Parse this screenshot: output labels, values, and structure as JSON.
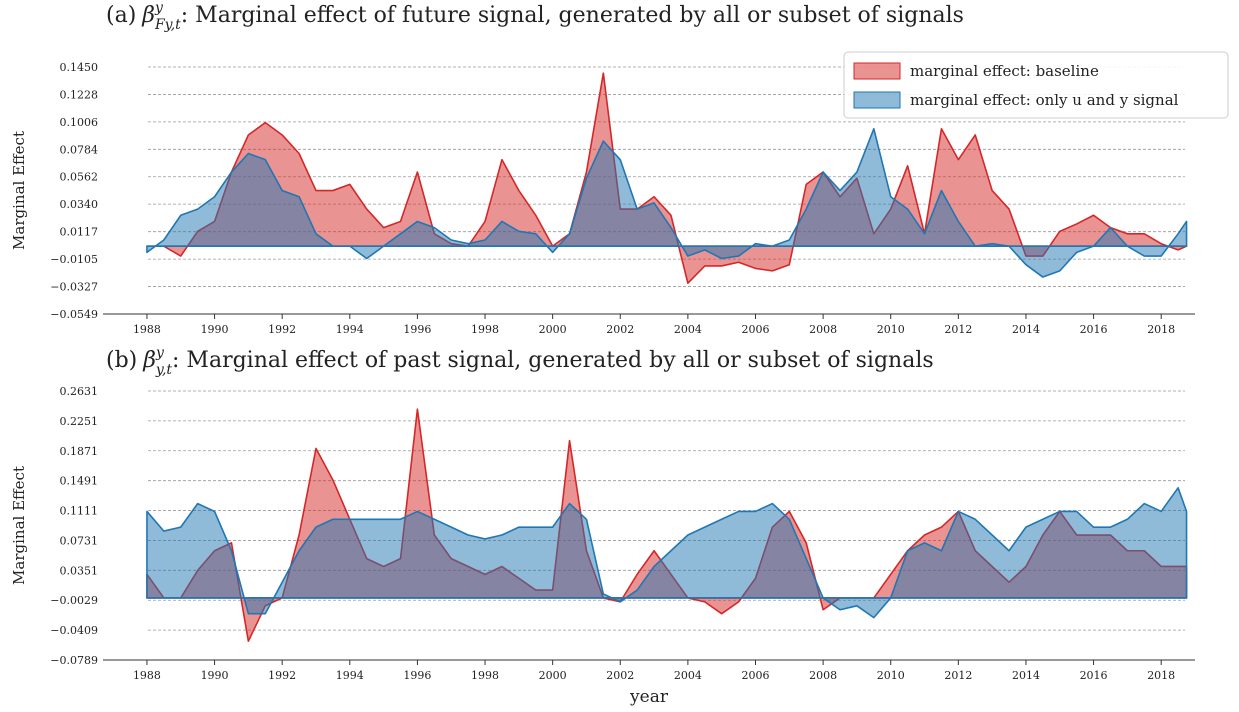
{
  "chart_data": [
    {
      "type": "area",
      "title_prefix": "(a)",
      "title_symbol": "β",
      "title_sup": "y",
      "title_sub": "Fy,t",
      "title_text": ": Marginal effect of future signal, generated by all or subset of signals",
      "ylabel": "Marginal Effect",
      "x": [
        1988,
        1988.5,
        1989,
        1989.5,
        1990,
        1990.5,
        1991,
        1991.5,
        1992,
        1992.5,
        1993,
        1993.5,
        1994,
        1994.5,
        1995,
        1995.5,
        1996,
        1996.5,
        1997,
        1997.5,
        1998,
        1998.5,
        1999,
        1999.5,
        2000,
        2000.5,
        2001,
        2001.5,
        2002,
        2002.5,
        2003,
        2003.5,
        2004,
        2004.5,
        2005,
        2005.5,
        2006,
        2006.5,
        2007,
        2007.5,
        2008,
        2008.5,
        2009,
        2009.5,
        2010,
        2010.5,
        2011,
        2011.5,
        2012,
        2012.5,
        2013,
        2013.5,
        2014,
        2014.5,
        2015,
        2015.5,
        2016,
        2016.5,
        2017,
        2017.5,
        2018,
        2018.5,
        2018.75
      ],
      "series": [
        {
          "name": "marginal effect: baseline",
          "color": "#d62728",
          "values": [
            0,
            0,
            -0.008,
            0.012,
            0.02,
            0.06,
            0.09,
            0.1,
            0.09,
            0.075,
            0.045,
            0.045,
            0.05,
            0.03,
            0.015,
            0.02,
            0.06,
            0.01,
            0.002,
            0,
            0.02,
            0.07,
            0.045,
            0.025,
            0,
            0.01,
            0.06,
            0.14,
            0.03,
            0.03,
            0.04,
            0.025,
            -0.03,
            -0.016,
            -0.016,
            -0.013,
            -0.018,
            -0.02,
            -0.015,
            0.05,
            0.06,
            0.04,
            0.055,
            0.01,
            0.03,
            0.065,
            0.01,
            0.095,
            0.07,
            0.09,
            0.045,
            0.03,
            -0.008,
            -0.008,
            0.012,
            0.018,
            0.025,
            0.015,
            0.01,
            0.01,
            0.002,
            -0.003,
            0
          ]
        },
        {
          "name": "marginal effect: only u and y signal",
          "color": "#1f77b4",
          "values": [
            -0.005,
            0.005,
            0.025,
            0.03,
            0.04,
            0.06,
            0.075,
            0.07,
            0.045,
            0.04,
            0.01,
            0,
            0,
            -0.01,
            0,
            0.01,
            0.02,
            0.015,
            0.005,
            0.002,
            0.005,
            0.02,
            0.012,
            0.01,
            -0.005,
            0.01,
            0.055,
            0.085,
            0.07,
            0.03,
            0.035,
            0.015,
            -0.008,
            -0.003,
            -0.01,
            -0.008,
            0.002,
            0,
            0.005,
            0.03,
            0.06,
            0.045,
            0.06,
            0.095,
            0.04,
            0.03,
            0.01,
            0.045,
            0.02,
            0,
            0.002,
            0,
            -0.015,
            -0.025,
            -0.02,
            -0.005,
            0,
            0.015,
            0,
            -0.008,
            -0.008,
            0.01,
            0.02
          ]
        }
      ],
      "xlim": [
        1986.7,
        2019.0
      ],
      "xticks": [
        1988,
        1990,
        1992,
        1994,
        1996,
        1998,
        2000,
        2002,
        2004,
        2006,
        2008,
        2010,
        2012,
        2014,
        2016,
        2018
      ],
      "ylim": [
        -0.0549,
        0.145
      ],
      "yticks": [
        {
          "value": -0.0549,
          "label": "−0.0549"
        },
        {
          "value": -0.0327,
          "label": "−0.0327"
        },
        {
          "value": -0.0105,
          "label": "−0.0105"
        },
        {
          "value": 0.0117,
          "label": "0.0117"
        },
        {
          "value": 0.034,
          "label": "0.0340"
        },
        {
          "value": 0.0562,
          "label": "0.0562"
        },
        {
          "value": 0.0784,
          "label": "0.0784"
        },
        {
          "value": 0.1006,
          "label": "0.1006"
        },
        {
          "value": 0.1228,
          "label": "0.1228"
        },
        {
          "value": 0.145,
          "label": "0.1450"
        }
      ],
      "grid": true,
      "legend": "upper right"
    },
    {
      "type": "area",
      "title_prefix": "(b)",
      "title_symbol": "β",
      "title_sup": "y",
      "title_sub": "y,t",
      "title_text": ": Marginal effect of past signal, generated by all or subset of signals",
      "ylabel": "Marginal Effect",
      "xlabel": "year",
      "x": [
        1988,
        1988.5,
        1989,
        1989.5,
        1990,
        1990.5,
        1991,
        1991.5,
        1992,
        1992.5,
        1993,
        1993.5,
        1994,
        1994.5,
        1995,
        1995.5,
        1996,
        1996.5,
        1997,
        1997.5,
        1998,
        1998.5,
        1999,
        1999.5,
        2000,
        2000.5,
        2001,
        2001.5,
        2002,
        2002.5,
        2003,
        2003.5,
        2004,
        2004.5,
        2005,
        2005.5,
        2006,
        2006.5,
        2007,
        2007.5,
        2008,
        2008.5,
        2009,
        2009.5,
        2010,
        2010.5,
        2011,
        2011.5,
        2012,
        2012.5,
        2013,
        2013.5,
        2014,
        2014.5,
        2015,
        2015.5,
        2016,
        2016.5,
        2017,
        2017.5,
        2018,
        2018.5,
        2018.75
      ],
      "series": [
        {
          "name": "marginal effect: baseline",
          "color": "#d62728",
          "values": [
            0.03,
            0,
            0,
            0.035,
            0.06,
            0.07,
            -0.055,
            -0.01,
            0,
            0.08,
            0.19,
            0.15,
            0.1,
            0.05,
            0.04,
            0.05,
            0.24,
            0.08,
            0.05,
            0.04,
            0.03,
            0.04,
            0.025,
            0.01,
            0.01,
            0.2,
            0.06,
            0,
            -0.005,
            0.03,
            0.06,
            0.03,
            0,
            -0.005,
            -0.02,
            -0.005,
            0.025,
            0.09,
            0.11,
            0.07,
            -0.015,
            0,
            0,
            0,
            0.03,
            0.06,
            0.08,
            0.09,
            0.11,
            0.06,
            0.04,
            0.02,
            0.04,
            0.08,
            0.11,
            0.08,
            0.08,
            0.08,
            0.06,
            0.06,
            0.04,
            0.04,
            0.04
          ]
        },
        {
          "name": "marginal effect: only u and y signal",
          "color": "#1f77b4",
          "values": [
            0.11,
            0.085,
            0.09,
            0.12,
            0.11,
            0.06,
            -0.02,
            -0.02,
            0.02,
            0.06,
            0.09,
            0.1,
            0.1,
            0.1,
            0.1,
            0.1,
            0.11,
            0.1,
            0.09,
            0.08,
            0.075,
            0.08,
            0.09,
            0.09,
            0.09,
            0.12,
            0.1,
            0.005,
            -0.005,
            0.01,
            0.04,
            0.06,
            0.08,
            0.09,
            0.1,
            0.11,
            0.11,
            0.12,
            0.1,
            0.05,
            0,
            -0.015,
            -0.01,
            -0.025,
            0,
            0.06,
            0.07,
            0.06,
            0.11,
            0.1,
            0.08,
            0.06,
            0.09,
            0.1,
            0.11,
            0.11,
            0.09,
            0.09,
            0.1,
            0.12,
            0.11,
            0.14,
            0.11
          ]
        }
      ],
      "xlim": [
        1986.7,
        2019.0
      ],
      "xticks": [
        1988,
        1990,
        1992,
        1994,
        1996,
        1998,
        2000,
        2002,
        2004,
        2006,
        2008,
        2010,
        2012,
        2014,
        2016,
        2018
      ],
      "ylim": [
        -0.0789,
        0.2631
      ],
      "yticks": [
        {
          "value": -0.0789,
          "label": "−0.0789"
        },
        {
          "value": -0.0409,
          "label": "−0.0409"
        },
        {
          "value": -0.0029,
          "label": "−0.0029"
        },
        {
          "value": 0.0351,
          "label": "0.0351"
        },
        {
          "value": 0.0731,
          "label": "0.0731"
        },
        {
          "value": 0.1111,
          "label": "0.1111"
        },
        {
          "value": 0.1491,
          "label": "0.1491"
        },
        {
          "value": 0.1871,
          "label": "0.1871"
        },
        {
          "value": 0.2251,
          "label": "0.2251"
        },
        {
          "value": 0.2631,
          "label": "0.2631"
        }
      ],
      "grid": true
    }
  ]
}
